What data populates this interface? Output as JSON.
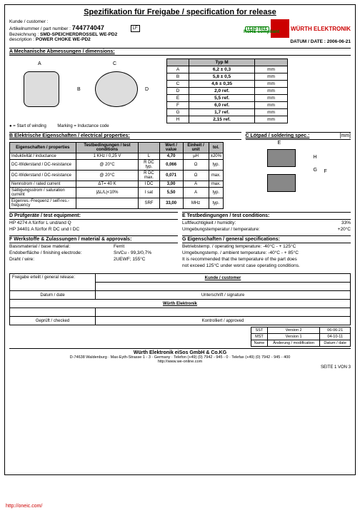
{
  "title": "Spezifikation für Freigabe / specification for release",
  "header": {
    "customer_lbl": "Kunde / customer :",
    "part_lbl": "Artikelnummer / part number :",
    "part_no": "744774047",
    "lf": "LF",
    "desc1_k": "Bezeichnung :",
    "desc1_v": "SMD-SPEICHERDROSSEL WE-PD2",
    "desc2_k": "description :",
    "desc2_v": "POWER CHOKE WE-PD2",
    "rohs": "RoHS compliant",
    "brand": "WÜRTH ELEKTRONIK",
    "datum": "DATUM / DATE : 2006-06-21",
    "lead_free": "LEAD FREE"
  },
  "secA": {
    "head": "A  Mechanische Abmessungen / dimensions:",
    "typ": "Typ M",
    "note1": "● = Start of winding",
    "note2": "Marking = Inductance code",
    "lbl_A": "A",
    "lbl_B": "B",
    "lbl_C": "C",
    "lbl_D": "D",
    "rows": [
      {
        "k": "A",
        "v": "6,2 ± 0,3",
        "u": "mm"
      },
      {
        "k": "B",
        "v": "5,8 ± 0,5",
        "u": "mm"
      },
      {
        "k": "C",
        "v": "4,6 ± 0,35",
        "u": "mm"
      },
      {
        "k": "D",
        "v": "2,0 ref.",
        "u": "mm"
      },
      {
        "k": "E",
        "v": "5,5 ref.",
        "u": "mm"
      },
      {
        "k": "F",
        "v": "6,0 ref.",
        "u": "mm"
      },
      {
        "k": "G",
        "v": "1,7 ref.",
        "u": "mm"
      },
      {
        "k": "H",
        "v": "2,15 ref.",
        "u": "mm"
      }
    ]
  },
  "secB": {
    "head": "B  Elektrische Eigenschaften / electrical properties:",
    "col": {
      "h1": "Eigenschaften / properties",
      "h2": "Testbedingungen / test conditions",
      "h3": "",
      "h4": "Wert / value",
      "h5": "Einheit / unit",
      "h6": "tol."
    },
    "rows": [
      {
        "p": "Induktivität / inductance",
        "c": "1 KHz / 0,25 V",
        "s": "L",
        "v": "4,70",
        "u": "µH",
        "t": "±20%"
      },
      {
        "p": "DC-Widerstand / DC-resistance",
        "c": "@ 20°C",
        "s": "R DC typ.",
        "v": "0,066",
        "u": "Ω",
        "t": "typ."
      },
      {
        "p": "DC-Widerstand / DC-resistance",
        "c": "@ 20°C",
        "s": "R DC max.",
        "v": "0,071",
        "u": "Ω",
        "t": "max."
      },
      {
        "p": "Nennstrom / rated current",
        "c": "ΔT= 40 K",
        "s": "I DC",
        "v": "3,00",
        "u": "A",
        "t": "max."
      },
      {
        "p": "Sättigungsstrom / saturation current",
        "c": "|ΔL/L|<10%",
        "s": "I sat",
        "v": "5,50",
        "u": "A",
        "t": "typ."
      },
      {
        "p": "Eigenres.-Frequenz / self-res.-frequency",
        "c": "",
        "s": "SRF",
        "v": "33,00",
        "u": "MHz",
        "t": "typ."
      }
    ]
  },
  "secC": {
    "head": "C  Lötpad / soldering spec.:",
    "unit": "[mm]",
    "E": "E",
    "F": "F",
    "G": "G",
    "H": "H"
  },
  "secD": {
    "head": "D  Prüfgeräte / test equipment:",
    "r1_k": "HP 4274 A für/for L und/and Q",
    "r2_k": "HP 34401 A für/for R DC und I DC"
  },
  "secE": {
    "head": "E  Testbedingungen / test conditions:",
    "r1_k": "Luftfeuchtigkeit / humidity:",
    "r1_v": "33%",
    "r2_k": "Umgebungstemperatur / temperature:",
    "r2_v": "+20°C"
  },
  "secF": {
    "head": "F  Werkstoffe & Zulassungen / material & approvals:",
    "r1_k": "Basismaterial / base material:",
    "r1_v": "Ferrit",
    "r2_k": "Endoberfläche / finishing electrode:",
    "r2_v": "Sn/Cu - 99,3/0,7%",
    "r3_k": "Draht / wire:",
    "r3_v": "2UEWF; 155°C"
  },
  "secG": {
    "head": "G  Eigenschaften / general specifications:",
    "r1": "Betriebstemp. / operating temperature:      -40°C - + 125°C",
    "r2": "Umgebungstemp. / ambient temperature: -40°C - + 85°C",
    "r3": "It is recommended that the temperature of the part does",
    "r4": "not exceed 125°C under worst case operating conditions."
  },
  "release": {
    "head": "Freigabe erteilt / general release:",
    "cust": "Kunde / customer",
    "date": "Datum / date",
    "sig": "Unterschrift / signature",
    "we": "Würth Elektronik",
    "checked": "Geprüft / checked",
    "approved": "Kontrolliert / approved"
  },
  "rev": {
    "h1": "SST",
    "h2": "Version 2",
    "h3": "06-06-21",
    "h4": "MST",
    "h5": "Version 1",
    "h6": "04-10-11",
    "h7": "Name",
    "h8": "Änderung / modification",
    "h9": "Datum / date"
  },
  "footer": {
    "co": "Würth Elektronik eiSos GmbH & Co.KG",
    "addr": "D-74638 Waldenburg · Max-Eyth-Strasse 1 - 3 · Germany · Telefon (+49) (0) 7942 - 945 - 0 · Telefax (+49) (0) 7942 - 945 - 400",
    "url": "http://www.we-online.com",
    "seite": "SEITE 1 VON 3"
  },
  "oneic": "http://oneic.com/"
}
